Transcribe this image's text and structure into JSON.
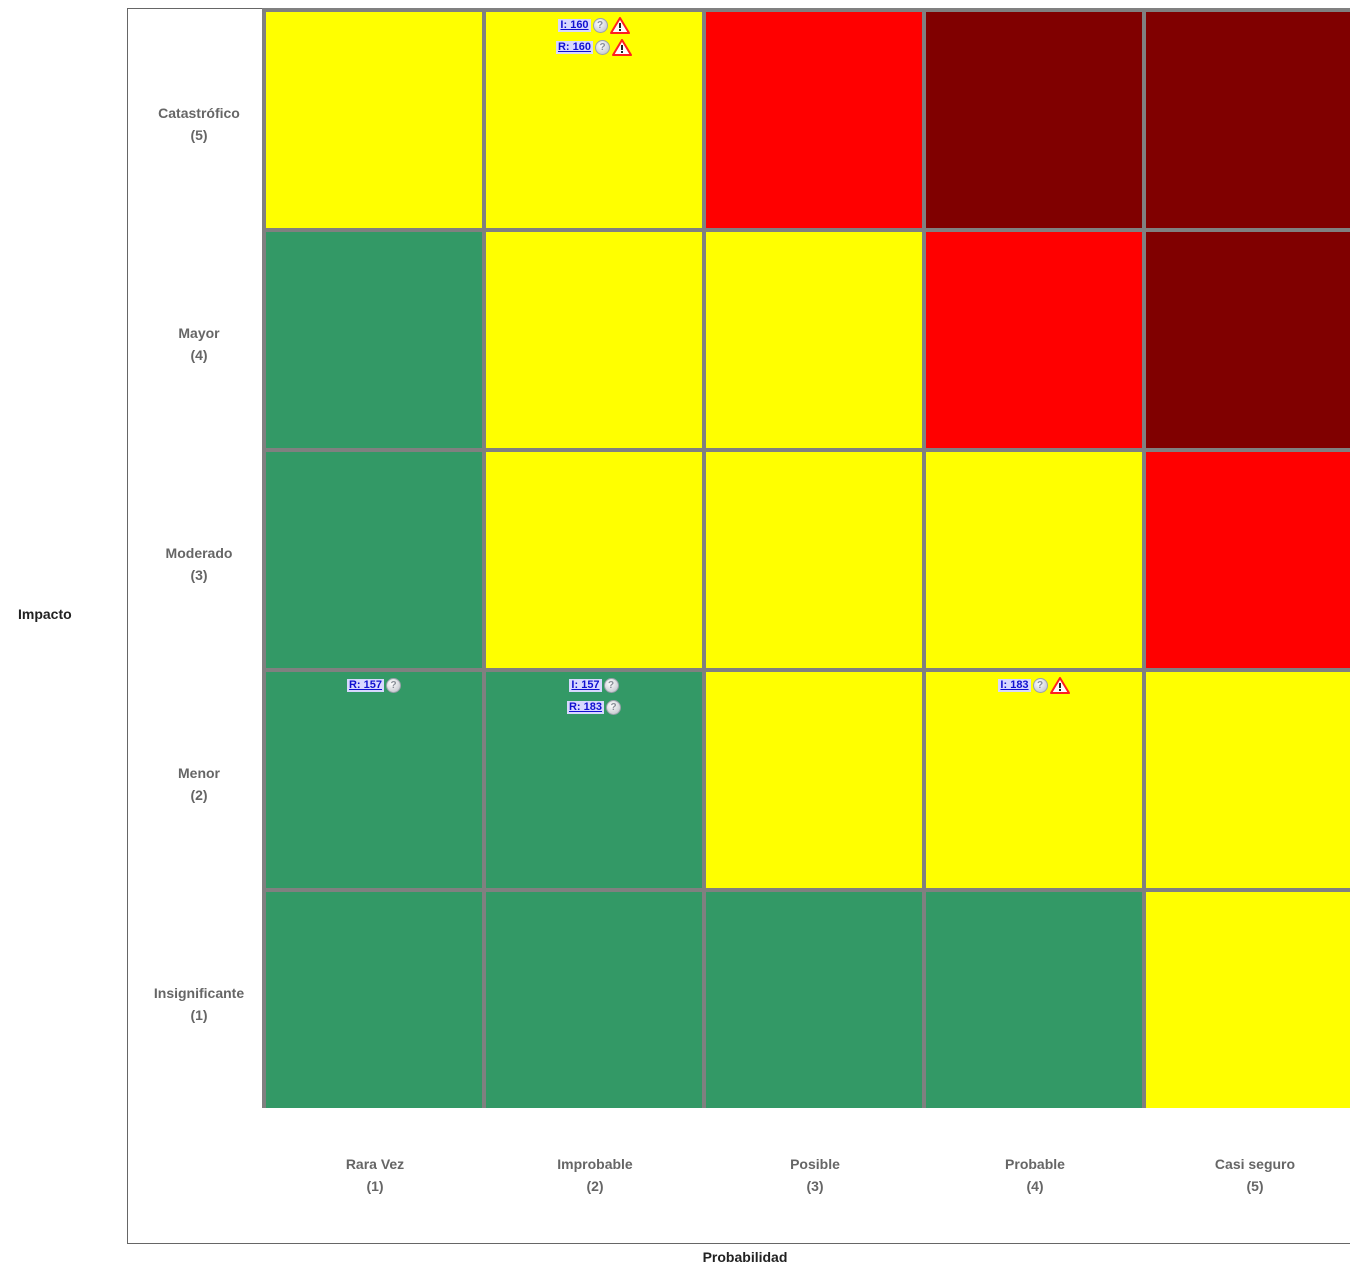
{
  "chart_data": {
    "type": "heatmap",
    "xlabel": "Probabilidad",
    "ylabel": "Impacto",
    "x_categories": [
      {
        "name": "Rara Vez",
        "level": "(1)"
      },
      {
        "name": "Improbable",
        "level": "(2)"
      },
      {
        "name": "Posible",
        "level": "(3)"
      },
      {
        "name": "Probable",
        "level": "(4)"
      },
      {
        "name": "Casi seguro",
        "level": "(5)"
      }
    ],
    "y_categories": [
      {
        "name": "Catastrófico",
        "level": "(5)"
      },
      {
        "name": "Mayor",
        "level": "(4)"
      },
      {
        "name": "Moderado",
        "level": "(3)"
      },
      {
        "name": "Menor",
        "level": "(2)"
      },
      {
        "name": "Insignificante",
        "level": "(1)"
      }
    ],
    "colors": {
      "green": "#339966",
      "yellow": "#ffff00",
      "red": "#ff0000",
      "darkred": "#800000"
    },
    "cells": [
      [
        "yellow",
        "yellow",
        "red",
        "darkred",
        "darkred"
      ],
      [
        "green",
        "yellow",
        "yellow",
        "red",
        "darkred"
      ],
      [
        "green",
        "yellow",
        "yellow",
        "yellow",
        "red"
      ],
      [
        "green",
        "green",
        "yellow",
        "yellow",
        "yellow"
      ],
      [
        "green",
        "green",
        "green",
        "green",
        "yellow"
      ]
    ],
    "markers": [
      {
        "row": 0,
        "col": 1,
        "label": "I: 160",
        "icons": [
          "info-icon",
          "warning-icon"
        ]
      },
      {
        "row": 0,
        "col": 1,
        "label": "R: 160",
        "icons": [
          "info-icon",
          "warning-icon"
        ]
      },
      {
        "row": 3,
        "col": 0,
        "label": "R: 157",
        "icons": [
          "info-icon"
        ]
      },
      {
        "row": 3,
        "col": 1,
        "label": "I: 157",
        "icons": [
          "info-icon"
        ]
      },
      {
        "row": 3,
        "col": 1,
        "label": "R: 183",
        "icons": [
          "info-icon"
        ]
      },
      {
        "row": 3,
        "col": 3,
        "label": "I: 183",
        "icons": [
          "info-icon",
          "warning-icon"
        ]
      }
    ]
  }
}
